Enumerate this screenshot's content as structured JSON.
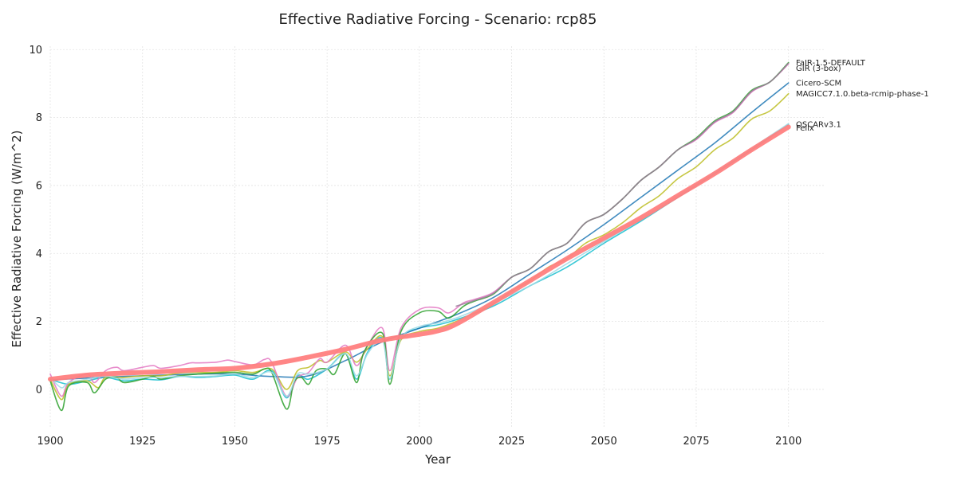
{
  "chart_data": {
    "type": "line",
    "title": "Effective Radiative Forcing - Scenario: rcp85",
    "xlabel": "Year",
    "ylabel": "Effective Radiative Forcing (W/m^2)",
    "xlim": [
      1900,
      2110
    ],
    "ylim": [
      -1.15,
      10.1
    ],
    "x_ticks": [
      1900,
      1925,
      1950,
      1975,
      2000,
      2025,
      2050,
      2075,
      2100
    ],
    "y_ticks": [
      0,
      2,
      4,
      6,
      8,
      10
    ],
    "grid": true,
    "legend": "none (series names printed at right end of lines)",
    "series": [
      {
        "name": "",
        "color": "#17becf",
        "points": [
          [
            1900,
            0.3
          ],
          [
            1905,
            0.15
          ],
          [
            1910,
            0.25
          ],
          [
            1915,
            0.35
          ],
          [
            1920,
            0.25
          ],
          [
            1925,
            0.3
          ],
          [
            1930,
            0.28
          ],
          [
            1935,
            0.38
          ],
          [
            1940,
            0.35
          ],
          [
            1945,
            0.38
          ],
          [
            1950,
            0.42
          ],
          [
            1955,
            0.3
          ],
          [
            1960,
            0.55
          ],
          [
            1964,
            -0.25
          ],
          [
            1967,
            0.4
          ],
          [
            1970,
            0.3
          ],
          [
            1975,
            0.6
          ],
          [
            1980,
            1.05
          ],
          [
            1983,
            0.3
          ],
          [
            1986,
            1.1
          ],
          [
            1990,
            1.5
          ],
          [
            1992,
            0.3
          ],
          [
            1995,
            1.5
          ],
          [
            2000,
            1.8
          ],
          [
            2005,
            1.9
          ],
          [
            2010,
            2.05
          ],
          [
            2020,
            2.45
          ],
          [
            2030,
            3.05
          ],
          [
            2040,
            3.6
          ],
          [
            2050,
            4.3
          ],
          [
            2060,
            4.95
          ],
          [
            2070,
            5.65
          ],
          [
            2080,
            6.35
          ],
          [
            2090,
            7.05
          ],
          [
            2100,
            7.8
          ]
        ]
      },
      {
        "name": "Cicero-SCM",
        "color": "#1f77b4",
        "points": [
          [
            1900,
            0.28
          ],
          [
            1920,
            0.38
          ],
          [
            1940,
            0.45
          ],
          [
            1950,
            0.45
          ],
          [
            1960,
            0.38
          ],
          [
            1970,
            0.4
          ],
          [
            1980,
            0.85
          ],
          [
            1990,
            1.4
          ],
          [
            2000,
            1.8
          ],
          [
            2010,
            2.2
          ],
          [
            2020,
            2.7
          ],
          [
            2030,
            3.4
          ],
          [
            2040,
            4.1
          ],
          [
            2050,
            4.85
          ],
          [
            2060,
            5.65
          ],
          [
            2070,
            6.45
          ],
          [
            2080,
            7.25
          ],
          [
            2090,
            8.15
          ],
          [
            2100,
            9.02
          ]
        ]
      },
      {
        "name": "MAGICC7.1.0.beta-rcmip-phase-1",
        "color": "#bcbd22",
        "points": [
          [
            1900,
            0.3
          ],
          [
            1903,
            -0.3
          ],
          [
            1905,
            0.15
          ],
          [
            1910,
            0.25
          ],
          [
            1913,
            0.05
          ],
          [
            1915,
            0.35
          ],
          [
            1920,
            0.35
          ],
          [
            1925,
            0.4
          ],
          [
            1930,
            0.4
          ],
          [
            1935,
            0.48
          ],
          [
            1940,
            0.5
          ],
          [
            1945,
            0.5
          ],
          [
            1950,
            0.55
          ],
          [
            1955,
            0.5
          ],
          [
            1960,
            0.6
          ],
          [
            1964,
            0.0
          ],
          [
            1967,
            0.55
          ],
          [
            1970,
            0.65
          ],
          [
            1973,
            0.85
          ],
          [
            1975,
            0.8
          ],
          [
            1980,
            1.1
          ],
          [
            1983,
            0.8
          ],
          [
            1986,
            1.2
          ],
          [
            1990,
            1.55
          ],
          [
            1992,
            0.4
          ],
          [
            1995,
            1.45
          ],
          [
            2000,
            1.7
          ],
          [
            2005,
            1.8
          ],
          [
            2010,
            2.0
          ],
          [
            2015,
            2.25
          ],
          [
            2020,
            2.5
          ],
          [
            2025,
            2.9
          ],
          [
            2030,
            3.2
          ],
          [
            2035,
            3.6
          ],
          [
            2040,
            3.85
          ],
          [
            2045,
            4.3
          ],
          [
            2050,
            4.55
          ],
          [
            2055,
            4.9
          ],
          [
            2060,
            5.35
          ],
          [
            2065,
            5.7
          ],
          [
            2070,
            6.2
          ],
          [
            2075,
            6.55
          ],
          [
            2080,
            7.05
          ],
          [
            2085,
            7.4
          ],
          [
            2090,
            7.95
          ],
          [
            2095,
            8.2
          ],
          [
            2100,
            8.7
          ]
        ]
      },
      {
        "name": "GIR (3-box)",
        "color": "#e377c2",
        "points": [
          [
            1900,
            0.45
          ],
          [
            1903,
            -0.2
          ],
          [
            1905,
            0.2
          ],
          [
            1910,
            0.45
          ],
          [
            1912,
            0.2
          ],
          [
            1915,
            0.55
          ],
          [
            1918,
            0.65
          ],
          [
            1920,
            0.55
          ],
          [
            1925,
            0.65
          ],
          [
            1928,
            0.7
          ],
          [
            1930,
            0.62
          ],
          [
            1935,
            0.7
          ],
          [
            1938,
            0.78
          ],
          [
            1940,
            0.78
          ],
          [
            1945,
            0.8
          ],
          [
            1948,
            0.86
          ],
          [
            1950,
            0.82
          ],
          [
            1955,
            0.72
          ],
          [
            1958,
            0.88
          ],
          [
            1960,
            0.8
          ],
          [
            1964,
            -0.2
          ],
          [
            1967,
            0.35
          ],
          [
            1970,
            0.5
          ],
          [
            1973,
            0.9
          ],
          [
            1975,
            0.8
          ],
          [
            1980,
            1.3
          ],
          [
            1983,
            0.7
          ],
          [
            1986,
            1.3
          ],
          [
            1990,
            1.8
          ],
          [
            1992,
            0.55
          ],
          [
            1995,
            1.8
          ],
          [
            2000,
            2.35
          ],
          [
            2005,
            2.4
          ],
          [
            2008,
            2.25
          ],
          [
            2012,
            2.55
          ],
          [
            2015,
            2.65
          ],
          [
            2020,
            2.85
          ],
          [
            2025,
            3.3
          ],
          [
            2030,
            3.55
          ],
          [
            2035,
            4.05
          ],
          [
            2040,
            4.3
          ],
          [
            2045,
            4.9
          ],
          [
            2050,
            5.15
          ],
          [
            2055,
            5.6
          ],
          [
            2060,
            6.15
          ],
          [
            2065,
            6.55
          ],
          [
            2070,
            7.05
          ],
          [
            2075,
            7.35
          ],
          [
            2080,
            7.85
          ],
          [
            2085,
            8.15
          ],
          [
            2090,
            8.75
          ],
          [
            2095,
            9.05
          ],
          [
            2100,
            9.58
          ]
        ]
      },
      {
        "name": "FaIR-1.5-DEFAULT",
        "color": "#2ca02c",
        "points": [
          [
            1900,
            0.25
          ],
          [
            1903,
            -0.62
          ],
          [
            1905,
            0.1
          ],
          [
            1910,
            0.2
          ],
          [
            1912,
            -0.1
          ],
          [
            1915,
            0.3
          ],
          [
            1918,
            0.35
          ],
          [
            1920,
            0.2
          ],
          [
            1925,
            0.3
          ],
          [
            1928,
            0.38
          ],
          [
            1930,
            0.3
          ],
          [
            1935,
            0.4
          ],
          [
            1940,
            0.45
          ],
          [
            1945,
            0.48
          ],
          [
            1950,
            0.5
          ],
          [
            1955,
            0.45
          ],
          [
            1958,
            0.6
          ],
          [
            1960,
            0.5
          ],
          [
            1964,
            -0.58
          ],
          [
            1966,
            0.2
          ],
          [
            1968,
            0.35
          ],
          [
            1970,
            0.15
          ],
          [
            1972,
            0.55
          ],
          [
            1975,
            0.6
          ],
          [
            1977,
            0.45
          ],
          [
            1980,
            1.05
          ],
          [
            1983,
            0.2
          ],
          [
            1985,
            1.1
          ],
          [
            1990,
            1.65
          ],
          [
            1992,
            0.15
          ],
          [
            1995,
            1.7
          ],
          [
            2000,
            2.25
          ],
          [
            2005,
            2.3
          ],
          [
            2008,
            2.1
          ],
          [
            2012,
            2.45
          ],
          [
            2015,
            2.6
          ],
          [
            2020,
            2.8
          ],
          [
            2025,
            3.3
          ],
          [
            2030,
            3.55
          ],
          [
            2035,
            4.05
          ],
          [
            2040,
            4.3
          ],
          [
            2045,
            4.9
          ],
          [
            2050,
            5.15
          ],
          [
            2055,
            5.6
          ],
          [
            2060,
            6.15
          ],
          [
            2065,
            6.55
          ],
          [
            2070,
            7.05
          ],
          [
            2075,
            7.4
          ],
          [
            2080,
            7.9
          ],
          [
            2085,
            8.2
          ],
          [
            2090,
            8.8
          ],
          [
            2095,
            9.05
          ],
          [
            2100,
            9.62
          ]
        ]
      },
      {
        "name": "OSCARv3.1",
        "color": "#9edae5",
        "points": [
          [
            1900,
            0.35
          ],
          [
            1903,
            0.05
          ],
          [
            1905,
            0.2
          ],
          [
            1910,
            0.3
          ],
          [
            1915,
            0.38
          ],
          [
            1920,
            0.3
          ],
          [
            1925,
            0.35
          ],
          [
            1930,
            0.35
          ],
          [
            1935,
            0.38
          ],
          [
            1940,
            0.38
          ],
          [
            1945,
            0.4
          ],
          [
            1950,
            0.45
          ],
          [
            1955,
            0.35
          ],
          [
            1960,
            0.5
          ],
          [
            1964,
            -0.2
          ],
          [
            1967,
            0.45
          ],
          [
            1970,
            0.45
          ],
          [
            1975,
            0.6
          ],
          [
            1980,
            1.05
          ],
          [
            1983,
            0.4
          ],
          [
            1986,
            1.05
          ],
          [
            1990,
            1.45
          ],
          [
            1992,
            0.3
          ],
          [
            1995,
            1.5
          ],
          [
            2000,
            1.85
          ],
          [
            2005,
            1.95
          ],
          [
            2010,
            2.1
          ],
          [
            2020,
            2.55
          ],
          [
            2030,
            3.05
          ],
          [
            2040,
            3.7
          ],
          [
            2050,
            4.35
          ],
          [
            2060,
            5.0
          ],
          [
            2070,
            5.7
          ],
          [
            2080,
            6.4
          ],
          [
            2090,
            7.1
          ],
          [
            2100,
            7.82
          ]
        ]
      },
      {
        "name": "FaIR-1.5-DEFAULT",
        "color": "#9a7f9a",
        "points": [
          [
            2010,
            2.45
          ],
          [
            2015,
            2.62
          ],
          [
            2020,
            2.82
          ],
          [
            2025,
            3.3
          ],
          [
            2030,
            3.55
          ],
          [
            2035,
            4.05
          ],
          [
            2040,
            4.3
          ],
          [
            2045,
            4.9
          ],
          [
            2050,
            5.15
          ],
          [
            2055,
            5.6
          ],
          [
            2060,
            6.15
          ],
          [
            2065,
            6.55
          ],
          [
            2070,
            7.05
          ],
          [
            2075,
            7.37
          ],
          [
            2080,
            7.87
          ],
          [
            2085,
            8.17
          ],
          [
            2090,
            8.77
          ],
          [
            2095,
            9.05
          ],
          [
            2100,
            9.6
          ]
        ]
      },
      {
        "name": "Fellx",
        "color": "#ff7f7f",
        "points": [
          [
            1900,
            0.3
          ],
          [
            1910,
            0.42
          ],
          [
            1920,
            0.48
          ],
          [
            1930,
            0.52
          ],
          [
            1940,
            0.58
          ],
          [
            1950,
            0.62
          ],
          [
            1960,
            0.75
          ],
          [
            1970,
            0.95
          ],
          [
            1980,
            1.18
          ],
          [
            1990,
            1.45
          ],
          [
            2000,
            1.62
          ],
          [
            2005,
            1.72
          ],
          [
            2010,
            1.92
          ],
          [
            2020,
            2.55
          ],
          [
            2030,
            3.2
          ],
          [
            2040,
            3.85
          ],
          [
            2050,
            4.45
          ],
          [
            2060,
            5.05
          ],
          [
            2070,
            5.7
          ],
          [
            2080,
            6.35
          ],
          [
            2090,
            7.05
          ],
          [
            2100,
            7.72
          ]
        ]
      }
    ],
    "end_labels": [
      {
        "text": "FaIR-1.5-DEFAULT",
        "y": 9.62
      },
      {
        "text": "GIR (3-box)",
        "y": 9.45
      },
      {
        "text": "Cicero-SCM",
        "y": 9.02
      },
      {
        "text": "MAGICC7.1.0.beta-rcmip-phase-1",
        "y": 8.7
      },
      {
        "text": "OSCARv3.1",
        "y": 7.8
      },
      {
        "text": "Fellx",
        "y": 7.7
      }
    ]
  }
}
